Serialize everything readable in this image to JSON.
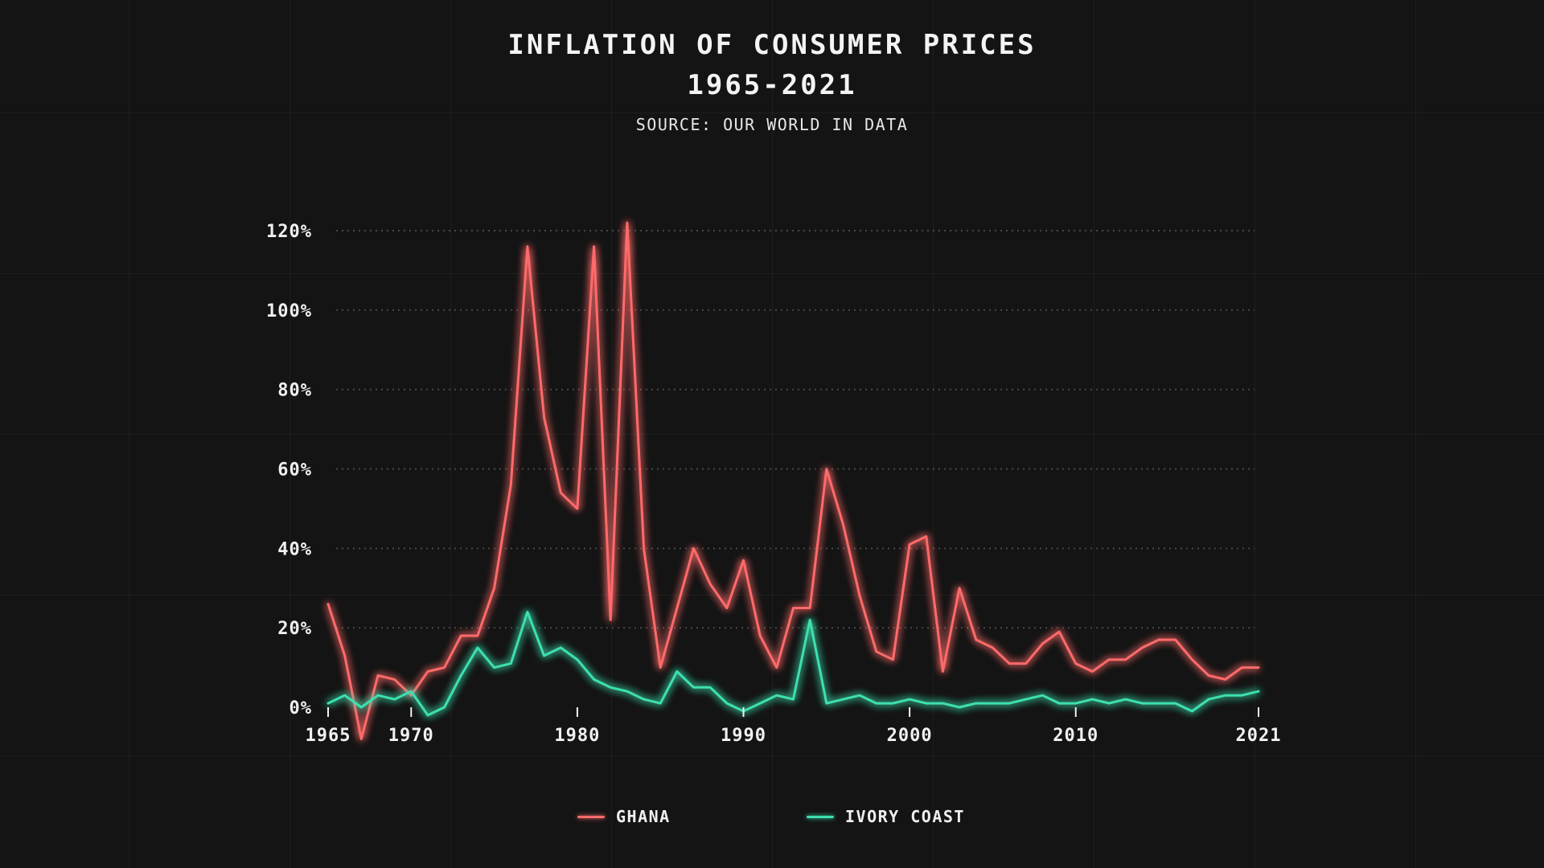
{
  "chart_data": {
    "type": "line",
    "title": "INFLATION OF CONSUMER PRICES",
    "subtitle": "1965-2021",
    "source": "SOURCE: OUR WORLD IN DATA",
    "x": [
      1965,
      1966,
      1967,
      1968,
      1969,
      1970,
      1971,
      1972,
      1973,
      1974,
      1975,
      1976,
      1977,
      1978,
      1979,
      1980,
      1981,
      1982,
      1983,
      1984,
      1985,
      1986,
      1987,
      1988,
      1989,
      1990,
      1991,
      1992,
      1993,
      1994,
      1995,
      1996,
      1997,
      1998,
      1999,
      2000,
      2001,
      2002,
      2003,
      2004,
      2005,
      2006,
      2007,
      2008,
      2009,
      2010,
      2011,
      2012,
      2013,
      2014,
      2015,
      2016,
      2017,
      2018,
      2019,
      2020,
      2021
    ],
    "series": [
      {
        "name": "GHANA",
        "color": "#ff6b6b",
        "values": [
          26,
          13,
          -8,
          8,
          7,
          3,
          9,
          10,
          18,
          18,
          30,
          56,
          116,
          73,
          54,
          50,
          116,
          22,
          122,
          40,
          10,
          25,
          40,
          31,
          25,
          37,
          18,
          10,
          25,
          25,
          60,
          46,
          28,
          14,
          12,
          41,
          43,
          9,
          30,
          17,
          15,
          11,
          11,
          16,
          19,
          11,
          9,
          12,
          12,
          15,
          17,
          17,
          12,
          8,
          7,
          10,
          10
        ]
      },
      {
        "name": "IVORY COAST",
        "color": "#3ee0b0",
        "values": [
          1,
          3,
          0,
          3,
          2,
          4,
          -2,
          0,
          8,
          15,
          10,
          11,
          24,
          13,
          15,
          12,
          7,
          5,
          4,
          2,
          1,
          9,
          5,
          5,
          1,
          -1,
          1,
          3,
          2,
          22,
          1,
          2,
          3,
          1,
          1,
          2,
          1,
          1,
          0,
          1,
          1,
          1,
          2,
          3,
          1,
          1,
          2,
          1,
          2,
          1,
          1,
          1,
          -1,
          2,
          3,
          3,
          4
        ]
      }
    ],
    "y_ticks": [
      "0%",
      "20%",
      "40%",
      "60%",
      "80%",
      "100%",
      "120%"
    ],
    "y_tick_values": [
      0,
      20,
      40,
      60,
      80,
      100,
      120
    ],
    "x_ticks": [
      "1965",
      "1970",
      "1980",
      "1990",
      "2000",
      "2010",
      "2021"
    ],
    "x_tick_values": [
      1965,
      1970,
      1980,
      1990,
      2000,
      2010,
      2021
    ],
    "xlim": [
      1965,
      2021
    ],
    "ylim": [
      -8,
      120
    ],
    "grid": "horizontal dotted",
    "legend_position": "bottom-center"
  },
  "legend": {
    "items": [
      {
        "label": "GHANA",
        "color": "#ff6b6b"
      },
      {
        "label": "IVORY COAST",
        "color": "#3ee0b0"
      }
    ]
  }
}
